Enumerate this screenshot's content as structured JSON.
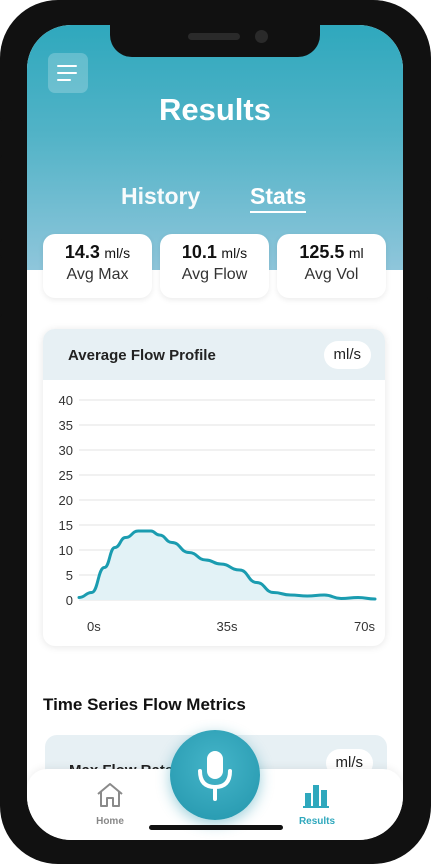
{
  "header": {
    "title": "Results",
    "tabs": [
      {
        "label": "History",
        "active": false
      },
      {
        "label": "Stats",
        "active": true
      }
    ]
  },
  "stats": [
    {
      "value": "14.3",
      "unit": "ml/s",
      "label": "Avg Max"
    },
    {
      "value": "10.1",
      "unit": "ml/s",
      "label": "Avg Flow"
    },
    {
      "value": "125.5",
      "unit": "ml",
      "label": "Avg Vol"
    }
  ],
  "chart_card": {
    "title": "Average Flow Profile",
    "unit": "ml/s"
  },
  "chart_data": {
    "type": "area",
    "title": "Average Flow Profile",
    "xlabel": "",
    "ylabel": "",
    "xlim": [
      0,
      70
    ],
    "ylim": [
      0,
      40
    ],
    "y_ticks": [
      "0",
      "5",
      "10",
      "15",
      "20",
      "25",
      "30",
      "35",
      "40"
    ],
    "x_ticks": [
      "0s",
      "35s",
      "70s"
    ],
    "grid": true,
    "color": "#1a9cb0",
    "series": [
      {
        "x": [
          0,
          3,
          6,
          8.5,
          11,
          14,
          17,
          19,
          22,
          26,
          30,
          33.5,
          38,
          42,
          46,
          50,
          54,
          58,
          62,
          66,
          70
        ],
        "values": [
          0.5,
          1.5,
          6.5,
          10.5,
          12.5,
          13.8,
          13.8,
          13.0,
          11.5,
          9.5,
          8.0,
          7.2,
          6.0,
          3.5,
          1.5,
          1.0,
          0.8,
          1.0,
          0.3,
          0.5,
          0.2
        ]
      }
    ]
  },
  "metrics_section": {
    "title": "Time Series Flow Metrics",
    "card_title": "Max Flow Rate",
    "card_unit": "ml/s"
  },
  "nav": {
    "home_label": "Home",
    "results_label": "Results"
  }
}
